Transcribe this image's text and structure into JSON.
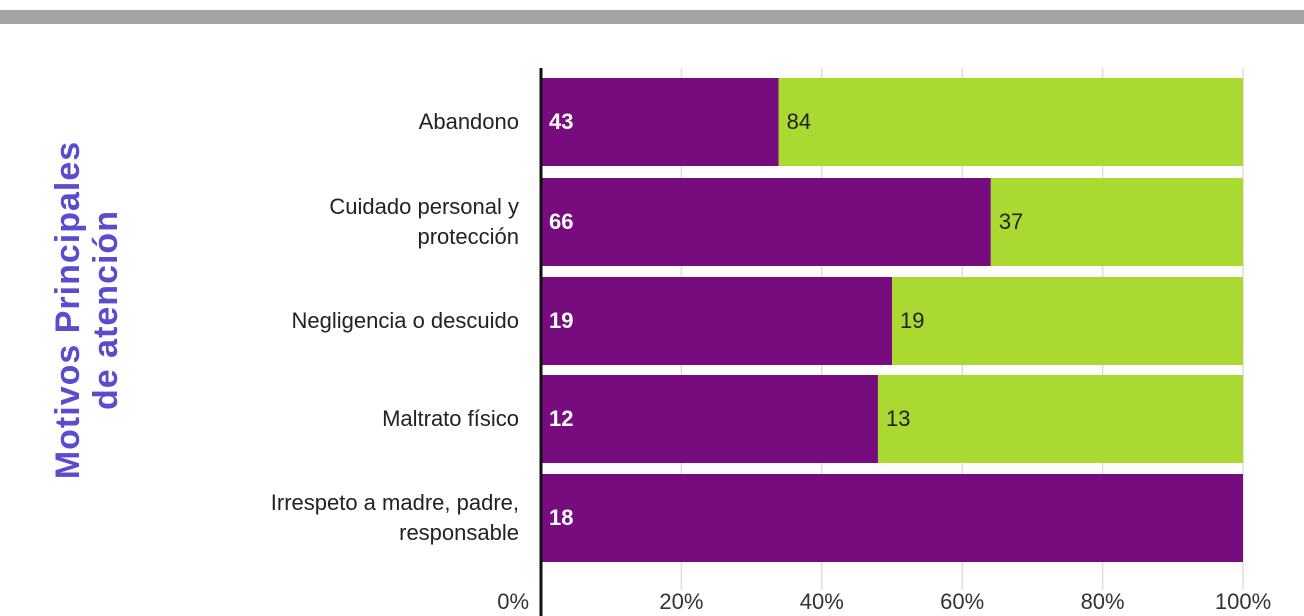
{
  "chart_data": {
    "type": "bar_stacked_percent_horizontal",
    "y_label_lines": [
      "Motivos Principales",
      "de atención"
    ],
    "categories": [
      "Abandono",
      "Cuidado personal y\nprotección",
      "Negligencia o descuido",
      "Maltrato físico",
      "Irrespeto a madre, padre,\nresponsable"
    ],
    "series": [
      {
        "color": "#770c7e",
        "values": [
          43,
          66,
          19,
          12,
          18
        ]
      },
      {
        "color": "#aad932",
        "values": [
          84,
          37,
          19,
          13,
          null
        ]
      }
    ],
    "xlim": [
      0,
      100
    ],
    "xticks": [
      {
        "value": 0,
        "label": "0%"
      },
      {
        "value": 20,
        "label": "20%"
      },
      {
        "value": 40,
        "label": "40%"
      },
      {
        "value": 60,
        "label": "60%"
      },
      {
        "value": 80,
        "label": "80%"
      },
      {
        "value": 100,
        "label": "100%"
      }
    ],
    "grid": true
  }
}
